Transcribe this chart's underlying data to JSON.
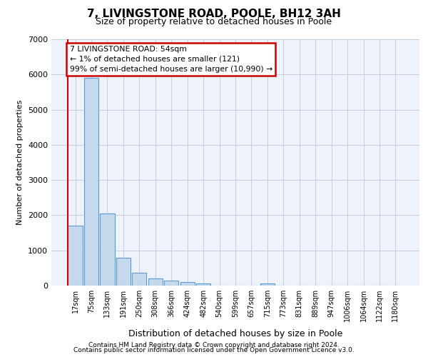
{
  "title1": "7, LIVINGSTONE ROAD, POOLE, BH12 3AH",
  "title2": "Size of property relative to detached houses in Poole",
  "xlabel": "Distribution of detached houses by size in Poole",
  "ylabel": "Number of detached properties",
  "categories": [
    "17sqm",
    "75sqm",
    "133sqm",
    "191sqm",
    "250sqm",
    "308sqm",
    "366sqm",
    "424sqm",
    "482sqm",
    "540sqm",
    "599sqm",
    "657sqm",
    "715sqm",
    "773sqm",
    "831sqm",
    "889sqm",
    "947sqm",
    "1006sqm",
    "1064sqm",
    "1122sqm",
    "1180sqm"
  ],
  "values": [
    1700,
    5900,
    2050,
    800,
    370,
    195,
    140,
    95,
    65,
    0,
    0,
    0,
    55,
    0,
    0,
    0,
    0,
    0,
    0,
    0,
    0
  ],
  "bar_color": "#c5d9ed",
  "bar_edge_color": "#5b9bd5",
  "ylim": [
    0,
    7000
  ],
  "yticks": [
    0,
    1000,
    2000,
    3000,
    4000,
    5000,
    6000,
    7000
  ],
  "annotation_line1": "7 LIVINGSTONE ROAD: 54sqm",
  "annotation_line2": "← 1% of detached houses are smaller (121)",
  "annotation_line3": "99% of semi-detached houses are larger (10,990) →",
  "annotation_box_edge_color": "#cc0000",
  "red_line_color": "#cc0000",
  "footer_line1": "Contains HM Land Registry data © Crown copyright and database right 2024.",
  "footer_line2": "Contains public sector information licensed under the Open Government Licence v3.0.",
  "background_color": "#eef2fb",
  "grid_color": "#c0c8d8",
  "figsize": [
    6.0,
    5.0
  ],
  "dpi": 100
}
